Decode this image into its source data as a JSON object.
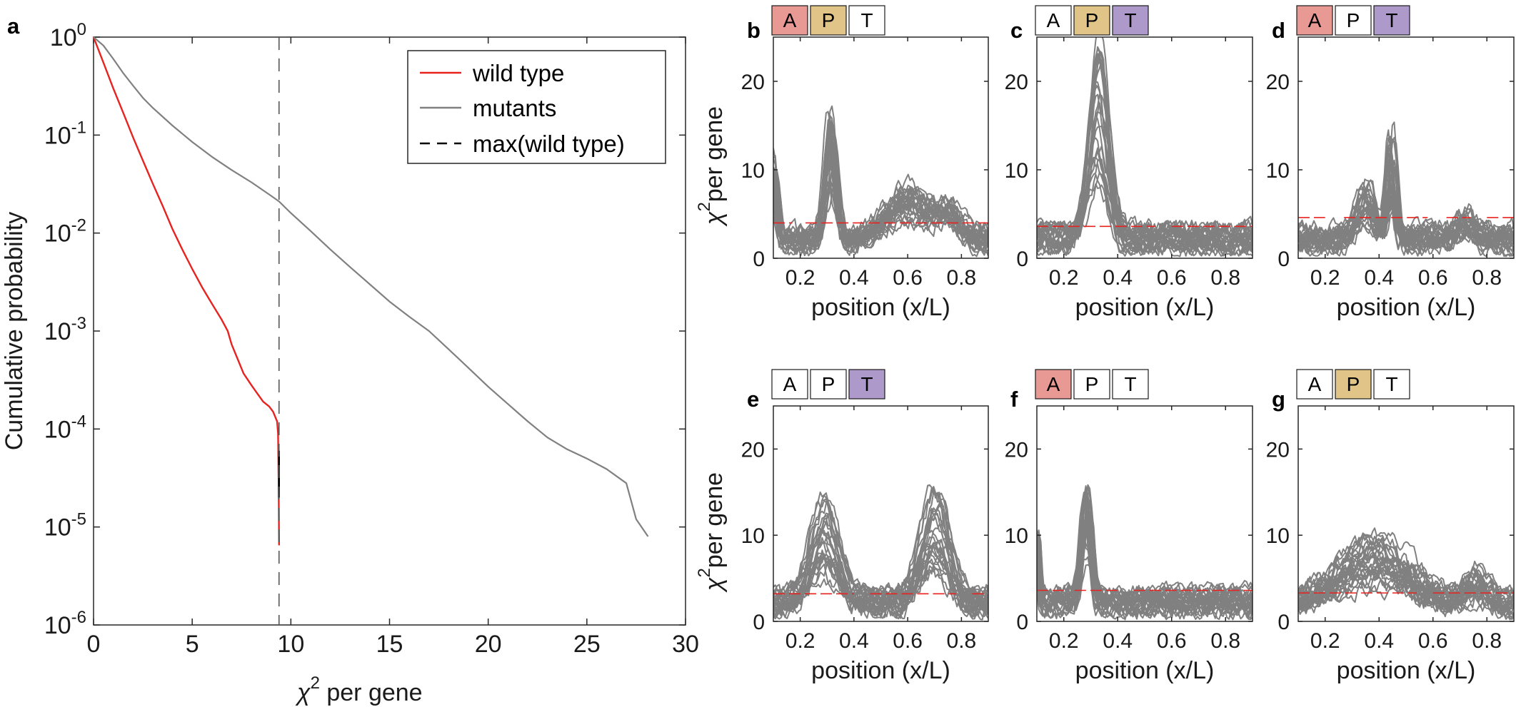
{
  "chart_data": [
    {
      "panel": "a",
      "type": "line",
      "xlabel_symbol": "χ",
      "xlabel_sup": "2",
      "xlabel_rest": " per gene",
      "ylabel": "Cumulative probability",
      "xlim": [
        0,
        30
      ],
      "ylim": [
        1e-06,
        1
      ],
      "yscale": "log",
      "xticks": [
        "0",
        "5",
        "10",
        "15",
        "20",
        "25",
        "30"
      ],
      "yticks": [
        {
          "base": "10",
          "exp": "0"
        },
        {
          "base": "10",
          "exp": "-1"
        },
        {
          "base": "10",
          "exp": "-2"
        },
        {
          "base": "10",
          "exp": "-3"
        },
        {
          "base": "10",
          "exp": "-4"
        },
        {
          "base": "10",
          "exp": "-5"
        },
        {
          "base": "10",
          "exp": "-6"
        }
      ],
      "legend_position": "top-right",
      "series": [
        {
          "name": "wild type",
          "color": "#e8231f",
          "x": [
            0,
            0.5,
            1,
            1.5,
            2,
            2.5,
            3,
            3.5,
            4,
            4.5,
            5,
            5.5,
            6,
            6.5,
            6.8,
            7,
            7.3,
            7.6,
            8,
            8.3,
            8.6,
            8.9,
            9.1,
            9.3,
            9.35,
            9.38,
            9.4
          ],
          "y": [
            1,
            0.55,
            0.3,
            0.17,
            0.095,
            0.055,
            0.032,
            0.019,
            0.011,
            0.0068,
            0.0043,
            0.0028,
            0.0019,
            0.0013,
            0.001,
            0.00073,
            0.00052,
            0.00037,
            0.00028,
            0.00023,
            0.00019,
            0.00017,
            0.00015,
            0.00012,
            9e-05,
            3e-05,
            6.5e-06
          ]
        },
        {
          "name": "mutants",
          "color": "#808080",
          "x": [
            0,
            0.5,
            1,
            1.5,
            2,
            2.5,
            3,
            4,
            5,
            6,
            7,
            8,
            9,
            9.4,
            10,
            11,
            12,
            13,
            14,
            15,
            16,
            17,
            18,
            19,
            20,
            21,
            22,
            23,
            24,
            25,
            26,
            27,
            27.5,
            28.1
          ],
          "y": [
            1,
            0.82,
            0.6,
            0.43,
            0.32,
            0.24,
            0.19,
            0.125,
            0.085,
            0.06,
            0.044,
            0.033,
            0.024,
            0.021,
            0.016,
            0.0105,
            0.0068,
            0.0045,
            0.003,
            0.002,
            0.0014,
            0.001,
            0.00065,
            0.00042,
            0.00027,
            0.00018,
            0.00012,
            8.2e-05,
            6.2e-05,
            5e-05,
            3.9e-05,
            2.8e-05,
            1.2e-05,
            8e-06
          ]
        }
      ],
      "reference_line": {
        "name": "max(wild type)",
        "x": 9.4,
        "style": "dashed",
        "color": "#000000"
      }
    },
    {
      "panel": "b",
      "type": "line",
      "boxes": [
        "A",
        "P",
        "T"
      ],
      "highlighted": [
        0,
        1
      ],
      "xlabel": "position (x/L)",
      "ylabel_symbol": "χ",
      "ylabel_sup": "2",
      "ylabel_rest": "per gene",
      "xlim": [
        0.1,
        0.9
      ],
      "ylim": [
        0,
        25
      ],
      "xticks": [
        "0.2",
        "0.4",
        "0.6",
        "0.8"
      ],
      "yticks": [
        "0",
        "10",
        "20"
      ],
      "threshold": 4,
      "threshold_gaps": [
        [
          0.17,
          0.22
        ]
      ],
      "series": [
        {
          "x": [
            0.1,
            0.2,
            0.3,
            0.5,
            0.6,
            0.7,
            0.8,
            0.9
          ],
          "y": [
            5,
            1,
            8,
            3,
            6,
            4,
            3,
            2
          ]
        }
      ],
      "peaks": [
        {
          "x": 0.1,
          "h": 8,
          "w": 0.015
        },
        {
          "x": 0.315,
          "h": 12,
          "w": 0.02
        },
        {
          "x": 0.6,
          "h": 5,
          "w": 0.07
        },
        {
          "x": 0.75,
          "h": 3,
          "w": 0.05
        }
      ]
    },
    {
      "panel": "c",
      "type": "line",
      "boxes": [
        "A",
        "P",
        "T"
      ],
      "highlighted": [
        1,
        2
      ],
      "xlabel": "position (x/L)",
      "xlim": [
        0.1,
        0.9
      ],
      "ylim": [
        0,
        25
      ],
      "xticks": [
        "0.2",
        "0.4",
        "0.6",
        "0.8"
      ],
      "yticks": [
        "0",
        "10",
        "20"
      ],
      "threshold": 3.6,
      "threshold_gaps": [
        [
          0.54,
          0.6
        ]
      ],
      "series": [
        {
          "x": [
            0.1,
            0.33,
            0.9
          ],
          "y": [
            3,
            20,
            3
          ]
        }
      ],
      "peaks": [
        {
          "x": 0.33,
          "h": 18,
          "w": 0.035
        }
      ]
    },
    {
      "panel": "d",
      "type": "line",
      "boxes": [
        "A",
        "P",
        "T"
      ],
      "highlighted": [
        0,
        2
      ],
      "xlabel": "position (x/L)",
      "xlim": [
        0.1,
        0.9
      ],
      "ylim": [
        0,
        25
      ],
      "xticks": [
        "0.2",
        "0.4",
        "0.6",
        "0.8"
      ],
      "yticks": [
        "0",
        "10",
        "20"
      ],
      "threshold": 4.6,
      "threshold_gaps": [
        [
          0.2,
          0.27
        ],
        [
          0.58,
          0.65
        ],
        [
          0.74,
          0.8
        ]
      ],
      "series": [
        {
          "x": [
            0.1,
            0.35,
            0.45,
            0.9
          ],
          "y": [
            3,
            7,
            12,
            2
          ]
        }
      ],
      "peaks": [
        {
          "x": 0.35,
          "h": 5,
          "w": 0.03
        },
        {
          "x": 0.445,
          "h": 10,
          "w": 0.015
        },
        {
          "x": 0.72,
          "h": 2,
          "w": 0.03
        }
      ]
    },
    {
      "panel": "e",
      "type": "line",
      "boxes": [
        "A",
        "P",
        "T"
      ],
      "highlighted": [
        2
      ],
      "xlabel": "position (x/L)",
      "ylabel_symbol": "χ",
      "ylabel_sup": "2",
      "ylabel_rest": "per gene",
      "xlim": [
        0.1,
        0.9
      ],
      "ylim": [
        0,
        25
      ],
      "xticks": [
        "0.2",
        "0.4",
        "0.6",
        "0.8"
      ],
      "yticks": [
        "0",
        "10",
        "20"
      ],
      "threshold": 3.2,
      "threshold_gaps": [
        [
          0.4,
          0.46
        ],
        [
          0.78,
          0.84
        ]
      ],
      "series": [
        {
          "x": [
            0.1,
            0.3,
            0.5,
            0.7,
            0.9
          ],
          "y": [
            3,
            11,
            6,
            14,
            2
          ]
        }
      ],
      "peaks": [
        {
          "x": 0.29,
          "h": 9,
          "w": 0.05
        },
        {
          "x": 0.7,
          "h": 10,
          "w": 0.05
        }
      ]
    },
    {
      "panel": "f",
      "type": "line",
      "boxes": [
        "A",
        "P",
        "T"
      ],
      "highlighted": [
        0
      ],
      "xlabel": "position (x/L)",
      "xlim": [
        0.1,
        0.9
      ],
      "ylim": [
        0,
        25
      ],
      "xticks": [
        "0.2",
        "0.4",
        "0.6",
        "0.8"
      ],
      "yticks": [
        "0",
        "10",
        "20"
      ],
      "threshold": 3.6,
      "threshold_gaps": [
        [
          0.21,
          0.24
        ],
        [
          0.4,
          0.46
        ]
      ],
      "series": [
        {
          "x": [
            0.1,
            0.28,
            0.9
          ],
          "y": [
            3,
            15,
            4
          ]
        }
      ],
      "peaks": [
        {
          "x": 0.285,
          "h": 12,
          "w": 0.018
        },
        {
          "x": 0.1,
          "h": 8,
          "w": 0.008
        }
      ]
    },
    {
      "panel": "g",
      "type": "line",
      "boxes": [
        "A",
        "P",
        "T"
      ],
      "highlighted": [
        1
      ],
      "xlabel": "position (x/L)",
      "xlim": [
        0.1,
        0.9
      ],
      "ylim": [
        0,
        25
      ],
      "xticks": [
        "0.2",
        "0.4",
        "0.6",
        "0.8"
      ],
      "yticks": [
        "0",
        "10",
        "20"
      ],
      "threshold": 3.3,
      "threshold_gaps": [
        [
          0.54,
          0.6
        ]
      ],
      "series": [
        {
          "x": [
            0.1,
            0.4,
            0.6,
            0.75,
            0.9
          ],
          "y": [
            3,
            8,
            2,
            5,
            2
          ]
        }
      ],
      "peaks": [
        {
          "x": 0.38,
          "h": 6,
          "w": 0.12
        },
        {
          "x": 0.76,
          "h": 2.5,
          "w": 0.04
        }
      ]
    }
  ],
  "colors": {
    "wild_type": "#e8231f",
    "mutants": "#808080",
    "threshold": "#e8231f",
    "box_A": "#e89994",
    "box_P": "#e1c488",
    "box_T": "#ad9acb"
  }
}
